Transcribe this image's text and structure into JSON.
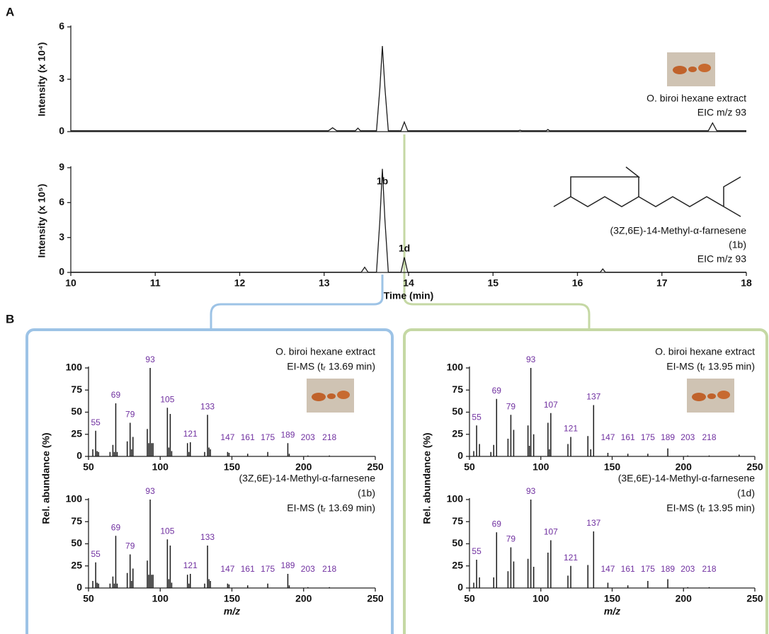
{
  "chart_data": [
    {
      "type": "line",
      "panel": "A",
      "ylabel": "Intensity (x 10⁴)",
      "color": "#1a1a1a",
      "x": [
        10,
        13.05,
        13.1,
        13.15,
        13.37,
        13.4,
        13.43,
        13.62,
        13.66,
        13.69,
        13.72,
        13.76,
        13.91,
        13.95,
        13.99,
        15.3,
        15.32,
        15.34,
        15.63,
        15.65,
        15.67,
        17.55,
        17.6,
        17.65,
        18
      ],
      "values": [
        0.05,
        0.05,
        0.22,
        0.05,
        0.05,
        0.2,
        0.05,
        0.05,
        2.5,
        4.9,
        2.5,
        0.05,
        0.05,
        0.55,
        0.05,
        0.05,
        0.08,
        0.05,
        0.05,
        0.12,
        0.05,
        0.05,
        0.5,
        0.05,
        0.05
      ],
      "xlim": [
        10,
        18
      ],
      "ylim": [
        0,
        6
      ],
      "yticks": [
        0,
        3,
        6
      ],
      "annotations": [
        "O. biroi hexane extract",
        "EIC m/z 93"
      ]
    },
    {
      "type": "line",
      "ylabel": "Intensity (x 10⁵)",
      "xlabel": "Time (min)",
      "color": "#1a1a1a",
      "x": [
        10,
        13.44,
        13.48,
        13.52,
        13.62,
        13.66,
        13.69,
        13.72,
        13.76,
        13.91,
        13.95,
        13.99,
        16.27,
        16.3,
        16.33,
        18
      ],
      "values": [
        0.02,
        0.02,
        0.45,
        0.02,
        0.02,
        4.5,
        8.9,
        4.5,
        0.02,
        0.02,
        1.3,
        0.02,
        0.02,
        0.3,
        0.02,
        0.02
      ],
      "xlim": [
        10,
        18
      ],
      "ylim": [
        0,
        9
      ],
      "xticks": [
        10,
        11,
        12,
        13,
        14,
        15,
        16,
        17,
        18
      ],
      "yticks": [
        0,
        3,
        6,
        9
      ],
      "annotations": [
        "(3Z,6E)-14-Methyl-α-farnesene",
        "(1b)",
        "EIC m/z 93"
      ],
      "peak_labels": [
        {
          "text": "1b",
          "x": 13.69
        },
        {
          "text": "1d",
          "x": 13.95
        }
      ]
    },
    {
      "type": "bar",
      "panel": "B",
      "ylabel": "Rel. abundance (%)",
      "color": "#1a1a1a",
      "label_color": "#7030a0",
      "x": [
        53,
        55,
        56,
        57,
        65,
        67,
        68,
        69,
        70,
        77,
        79,
        80,
        81,
        91,
        92,
        93,
        94,
        95,
        105,
        106,
        107,
        108,
        119,
        120,
        121,
        131,
        133,
        134,
        135,
        147,
        148,
        161,
        175,
        189,
        190,
        203,
        218
      ],
      "values": [
        8,
        29,
        6,
        5,
        5,
        13,
        5,
        60,
        5,
        17,
        38,
        8,
        22,
        31,
        15,
        100,
        15,
        15,
        55,
        10,
        48,
        6,
        15,
        5,
        16,
        5,
        47,
        10,
        8,
        5,
        4,
        3,
        5,
        15,
        3,
        1,
        1
      ],
      "xlim": [
        50,
        250
      ],
      "ylim": [
        0,
        100
      ],
      "xticks": [
        50,
        100,
        150,
        200,
        250
      ],
      "yticks": [
        0,
        25,
        50,
        75,
        100
      ],
      "annotations": [
        "O. biroi hexane extract",
        "EI-MS (tᵣ 13.69 min)"
      ],
      "peak_labels": [
        55,
        69,
        79,
        93,
        105,
        121,
        133,
        147,
        161,
        175,
        189,
        203,
        218
      ]
    },
    {
      "type": "bar",
      "xlabel": "m/z",
      "color": "#1a1a1a",
      "label_color": "#7030a0",
      "x": [
        53,
        55,
        56,
        57,
        65,
        67,
        68,
        69,
        70,
        77,
        79,
        80,
        81,
        91,
        92,
        93,
        94,
        95,
        105,
        106,
        107,
        108,
        119,
        120,
        121,
        131,
        133,
        134,
        135,
        147,
        148,
        161,
        175,
        189,
        190,
        203,
        218
      ],
      "values": [
        8,
        29,
        6,
        5,
        5,
        13,
        5,
        59,
        5,
        17,
        38,
        8,
        22,
        31,
        15,
        100,
        15,
        15,
        55,
        10,
        48,
        6,
        15,
        5,
        16,
        5,
        48,
        10,
        8,
        5,
        4,
        3,
        5,
        16,
        3,
        1,
        1
      ],
      "xlim": [
        50,
        250
      ],
      "ylim": [
        0,
        100
      ],
      "xticks": [
        50,
        100,
        150,
        200,
        250
      ],
      "yticks": [
        0,
        25,
        50,
        75,
        100
      ],
      "annotations": [
        "(3Z,6E)-14-Methyl-α-farnesene",
        "(1b)",
        "EI-MS (tᵣ 13.69 min)"
      ],
      "peak_labels": [
        55,
        69,
        79,
        93,
        105,
        121,
        133,
        147,
        161,
        175,
        189,
        203,
        218
      ]
    },
    {
      "type": "bar",
      "ylabel": "Rel. abundance (%)",
      "color": "#1a1a1a",
      "label_color": "#7030a0",
      "x": [
        53,
        55,
        57,
        65,
        67,
        69,
        77,
        79,
        81,
        91,
        92,
        93,
        95,
        105,
        106,
        107,
        119,
        121,
        133,
        135,
        137,
        147,
        161,
        175,
        189,
        203,
        218,
        239
      ],
      "values": [
        6,
        35,
        14,
        5,
        13,
        65,
        20,
        47,
        30,
        35,
        12,
        100,
        25,
        38,
        8,
        49,
        14,
        22,
        23,
        8,
        58,
        4,
        3,
        3,
        9,
        1,
        1,
        2
      ],
      "xlim": [
        50,
        250
      ],
      "ylim": [
        0,
        100
      ],
      "xticks": [
        50,
        100,
        150,
        200,
        250
      ],
      "yticks": [
        0,
        25,
        50,
        75,
        100
      ],
      "annotations": [
        "O. biroi hexane extract",
        "EI-MS (tᵣ 13.95 min)"
      ],
      "peak_labels": [
        55,
        69,
        79,
        93,
        107,
        121,
        137,
        147,
        161,
        175,
        189,
        203,
        218
      ]
    },
    {
      "type": "bar",
      "xlabel": "m/z",
      "color": "#1a1a1a",
      "label_color": "#7030a0",
      "x": [
        53,
        55,
        57,
        67,
        69,
        77,
        79,
        81,
        91,
        93,
        95,
        105,
        107,
        119,
        121,
        133,
        137,
        147,
        161,
        175,
        189,
        203,
        218
      ],
      "values": [
        6,
        32,
        12,
        12,
        63,
        19,
        46,
        30,
        33,
        100,
        24,
        40,
        54,
        14,
        25,
        26,
        64,
        6,
        3,
        8,
        10,
        1,
        1
      ],
      "xlim": [
        50,
        250
      ],
      "ylim": [
        0,
        100
      ],
      "xticks": [
        50,
        100,
        150,
        200,
        250
      ],
      "yticks": [
        0,
        25,
        50,
        75,
        100
      ],
      "annotations": [
        "(3E,6E)-14-Methyl-α-farnesene",
        "(1d)",
        "EI-MS (tᵣ 13.95 min)"
      ],
      "peak_labels": [
        55,
        69,
        79,
        93,
        107,
        121,
        137,
        147,
        161,
        175,
        189,
        203,
        218
      ]
    }
  ]
}
